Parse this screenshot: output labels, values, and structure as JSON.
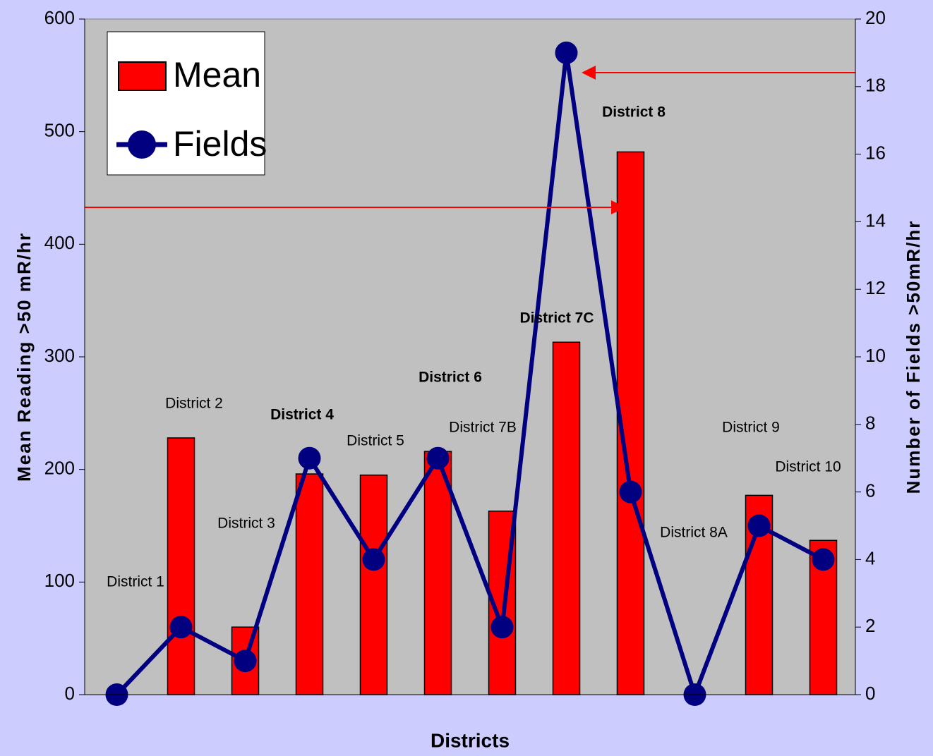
{
  "chart_data": {
    "type": "combo",
    "x_label": "Districts",
    "y_label": "Mean Reading >50 mR/hr",
    "y2_label": "Number of Fields >50mR/hr",
    "categories": [
      "District 1",
      "District 2",
      "District 3",
      "District  4",
      "District 5",
      "District 6",
      "District 7B",
      "District 7C",
      "District 8",
      "District 8A",
      "District 9",
      "District 10"
    ],
    "series": [
      {
        "name": "Mean",
        "type": "bar",
        "color": "#ff0000",
        "values": [
          0,
          228,
          60,
          196,
          195,
          216,
          163,
          313,
          482,
          0,
          177,
          137
        ]
      },
      {
        "name": "Fields",
        "type": "line",
        "axis": "y2",
        "color": "#000080",
        "values": [
          0,
          2,
          1,
          7,
          4,
          7,
          2,
          19,
          6,
          0,
          5,
          4
        ]
      }
    ],
    "ylim": [
      0,
      600
    ],
    "yticks": [
      0,
      100,
      200,
      300,
      400,
      500,
      600
    ],
    "y2lim": [
      0,
      20
    ],
    "y2ticks": [
      0,
      2,
      4,
      6,
      8,
      10,
      12,
      14,
      16,
      18,
      20
    ],
    "legend": "upper left"
  }
}
